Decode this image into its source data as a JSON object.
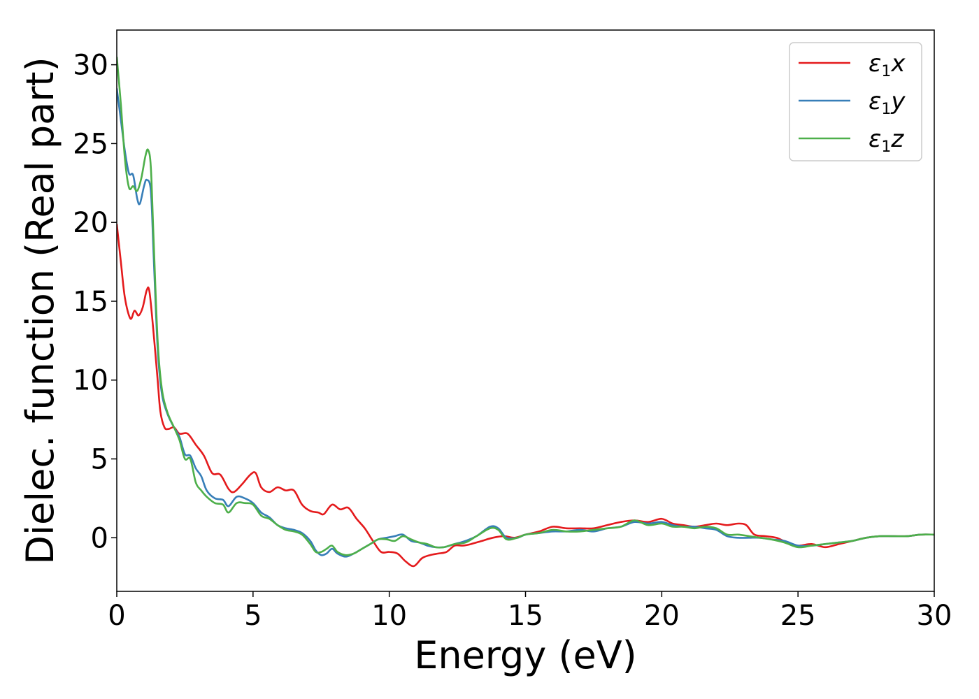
{
  "chart_data": {
    "type": "line",
    "title": "",
    "xlabel": "Energy (eV)",
    "ylabel": "Dielec. function (Real part)",
    "xlim": [
      0,
      30
    ],
    "ylim": [
      -3.4,
      32.2
    ],
    "xticks": [
      0,
      5,
      10,
      15,
      20,
      25,
      30
    ],
    "yticks": [
      0,
      5,
      10,
      15,
      20,
      25,
      30
    ],
    "grid": false,
    "legend_position": "top-right",
    "series": [
      {
        "name": "ε1x",
        "legend": {
          "base": "ε",
          "sub": "1",
          "var": "x"
        },
        "color": "#e41a1c",
        "points": [
          [
            0,
            19.9
          ],
          [
            0.15,
            17.5
          ],
          [
            0.3,
            15.2
          ],
          [
            0.5,
            13.9
          ],
          [
            0.65,
            14.4
          ],
          [
            0.8,
            14.1
          ],
          [
            0.95,
            14.6
          ],
          [
            1.1,
            15.7
          ],
          [
            1.2,
            15.6
          ],
          [
            1.35,
            13.0
          ],
          [
            1.5,
            10.0
          ],
          [
            1.6,
            8.0
          ],
          [
            1.75,
            7.0
          ],
          [
            1.9,
            6.9
          ],
          [
            2.1,
            7.0
          ],
          [
            2.3,
            6.6
          ],
          [
            2.6,
            6.6
          ],
          [
            2.9,
            5.9
          ],
          [
            3.2,
            5.2
          ],
          [
            3.5,
            4.1
          ],
          [
            3.8,
            4.0
          ],
          [
            4.1,
            3.1
          ],
          [
            4.3,
            2.9
          ],
          [
            4.6,
            3.4
          ],
          [
            4.9,
            4.0
          ],
          [
            5.1,
            4.1
          ],
          [
            5.3,
            3.2
          ],
          [
            5.6,
            2.9
          ],
          [
            5.9,
            3.2
          ],
          [
            6.2,
            3.0
          ],
          [
            6.5,
            3.0
          ],
          [
            6.8,
            2.1
          ],
          [
            7.1,
            1.7
          ],
          [
            7.4,
            1.6
          ],
          [
            7.6,
            1.5
          ],
          [
            7.9,
            2.1
          ],
          [
            8.2,
            1.8
          ],
          [
            8.5,
            1.9
          ],
          [
            8.8,
            1.2
          ],
          [
            9.1,
            0.6
          ],
          [
            9.4,
            -0.2
          ],
          [
            9.7,
            -0.9
          ],
          [
            10.0,
            -0.9
          ],
          [
            10.3,
            -1.0
          ],
          [
            10.6,
            -1.5
          ],
          [
            10.9,
            -1.8
          ],
          [
            11.2,
            -1.3
          ],
          [
            11.5,
            -1.1
          ],
          [
            11.8,
            -1.0
          ],
          [
            12.1,
            -0.9
          ],
          [
            12.4,
            -0.5
          ],
          [
            12.7,
            -0.5
          ],
          [
            13.0,
            -0.4
          ],
          [
            13.4,
            -0.2
          ],
          [
            13.8,
            0.0
          ],
          [
            14.2,
            0.1
          ],
          [
            14.6,
            0.0
          ],
          [
            15.0,
            0.2
          ],
          [
            15.5,
            0.4
          ],
          [
            16.0,
            0.7
          ],
          [
            16.5,
            0.6
          ],
          [
            17.0,
            0.6
          ],
          [
            17.5,
            0.6
          ],
          [
            18.0,
            0.8
          ],
          [
            18.5,
            1.0
          ],
          [
            19.0,
            1.1
          ],
          [
            19.5,
            1.0
          ],
          [
            20.0,
            1.2
          ],
          [
            20.4,
            0.9
          ],
          [
            20.8,
            0.8
          ],
          [
            21.2,
            0.7
          ],
          [
            21.6,
            0.8
          ],
          [
            22.0,
            0.9
          ],
          [
            22.4,
            0.8
          ],
          [
            22.8,
            0.9
          ],
          [
            23.1,
            0.8
          ],
          [
            23.4,
            0.2
          ],
          [
            23.8,
            0.1
          ],
          [
            24.2,
            0.0
          ],
          [
            24.6,
            -0.3
          ],
          [
            25.0,
            -0.5
          ],
          [
            25.5,
            -0.4
          ],
          [
            26.0,
            -0.6
          ],
          [
            26.5,
            -0.4
          ],
          [
            27.0,
            -0.2
          ],
          [
            27.5,
            0.0
          ],
          [
            28.0,
            0.1
          ],
          [
            28.5,
            0.1
          ],
          [
            29.0,
            0.1
          ],
          [
            29.5,
            0.2
          ],
          [
            30.0,
            0.2
          ]
        ]
      },
      {
        "name": "ε1y",
        "legend": {
          "base": "ε",
          "sub": "1",
          "var": "y"
        },
        "color": "#377eb8",
        "points": [
          [
            0,
            28.5
          ],
          [
            0.15,
            26.5
          ],
          [
            0.3,
            24.5
          ],
          [
            0.45,
            23.1
          ],
          [
            0.6,
            23.0
          ],
          [
            0.75,
            21.5
          ],
          [
            0.85,
            21.2
          ],
          [
            1.0,
            22.3
          ],
          [
            1.1,
            22.7
          ],
          [
            1.25,
            22.0
          ],
          [
            1.35,
            18.0
          ],
          [
            1.5,
            12.0
          ],
          [
            1.65,
            9.2
          ],
          [
            1.85,
            7.9
          ],
          [
            2.1,
            7.0
          ],
          [
            2.3,
            6.4
          ],
          [
            2.5,
            5.3
          ],
          [
            2.7,
            5.2
          ],
          [
            2.9,
            4.4
          ],
          [
            3.1,
            3.9
          ],
          [
            3.3,
            3.0
          ],
          [
            3.6,
            2.5
          ],
          [
            3.9,
            2.4
          ],
          [
            4.1,
            2.0
          ],
          [
            4.4,
            2.6
          ],
          [
            4.7,
            2.5
          ],
          [
            5.0,
            2.2
          ],
          [
            5.3,
            1.6
          ],
          [
            5.6,
            1.3
          ],
          [
            5.9,
            0.8
          ],
          [
            6.2,
            0.6
          ],
          [
            6.5,
            0.5
          ],
          [
            6.8,
            0.3
          ],
          [
            7.1,
            -0.2
          ],
          [
            7.3,
            -0.8
          ],
          [
            7.5,
            -1.1
          ],
          [
            7.7,
            -1.0
          ],
          [
            7.9,
            -0.7
          ],
          [
            8.1,
            -1.0
          ],
          [
            8.4,
            -1.2
          ],
          [
            8.7,
            -1.0
          ],
          [
            9.0,
            -0.7
          ],
          [
            9.3,
            -0.4
          ],
          [
            9.6,
            -0.1
          ],
          [
            9.9,
            0.0
          ],
          [
            10.2,
            0.1
          ],
          [
            10.5,
            0.2
          ],
          [
            10.8,
            -0.2
          ],
          [
            11.1,
            -0.3
          ],
          [
            11.4,
            -0.5
          ],
          [
            11.7,
            -0.6
          ],
          [
            12.0,
            -0.6
          ],
          [
            12.4,
            -0.4
          ],
          [
            12.8,
            -0.2
          ],
          [
            13.2,
            0.1
          ],
          [
            13.7,
            0.7
          ],
          [
            14.0,
            0.6
          ],
          [
            14.3,
            0.0
          ],
          [
            14.7,
            0.0
          ],
          [
            15.0,
            0.2
          ],
          [
            15.5,
            0.3
          ],
          [
            16.0,
            0.4
          ],
          [
            16.5,
            0.4
          ],
          [
            17.0,
            0.5
          ],
          [
            17.5,
            0.4
          ],
          [
            18.0,
            0.6
          ],
          [
            18.5,
            0.7
          ],
          [
            19.0,
            1.0
          ],
          [
            19.5,
            0.9
          ],
          [
            20.0,
            1.0
          ],
          [
            20.4,
            0.8
          ],
          [
            20.8,
            0.7
          ],
          [
            21.2,
            0.7
          ],
          [
            21.6,
            0.6
          ],
          [
            22.0,
            0.5
          ],
          [
            22.4,
            0.1
          ],
          [
            22.8,
            0.0
          ],
          [
            23.2,
            0.0
          ],
          [
            23.6,
            0.0
          ],
          [
            24.0,
            -0.1
          ],
          [
            24.5,
            -0.2
          ],
          [
            25.0,
            -0.5
          ],
          [
            25.5,
            -0.5
          ],
          [
            26.0,
            -0.4
          ],
          [
            26.5,
            -0.3
          ],
          [
            27.0,
            -0.2
          ],
          [
            27.5,
            0.0
          ],
          [
            28.0,
            0.1
          ],
          [
            28.5,
            0.1
          ],
          [
            29.0,
            0.1
          ],
          [
            29.5,
            0.2
          ],
          [
            30.0,
            0.2
          ]
        ]
      },
      {
        "name": "ε1z",
        "legend": {
          "base": "ε",
          "sub": "1",
          "var": "z"
        },
        "color": "#4daf4a",
        "points": [
          [
            0,
            30.5
          ],
          [
            0.15,
            27.5
          ],
          [
            0.3,
            24.0
          ],
          [
            0.45,
            22.2
          ],
          [
            0.6,
            22.3
          ],
          [
            0.75,
            22.0
          ],
          [
            0.9,
            22.8
          ],
          [
            1.05,
            24.2
          ],
          [
            1.15,
            24.6
          ],
          [
            1.25,
            23.5
          ],
          [
            1.35,
            19.0
          ],
          [
            1.5,
            12.5
          ],
          [
            1.65,
            9.5
          ],
          [
            1.85,
            8.0
          ],
          [
            2.1,
            7.0
          ],
          [
            2.3,
            6.2
          ],
          [
            2.5,
            5.0
          ],
          [
            2.7,
            5.0
          ],
          [
            2.9,
            3.5
          ],
          [
            3.1,
            3.0
          ],
          [
            3.3,
            2.6
          ],
          [
            3.6,
            2.2
          ],
          [
            3.9,
            2.1
          ],
          [
            4.1,
            1.6
          ],
          [
            4.4,
            2.2
          ],
          [
            4.7,
            2.2
          ],
          [
            5.0,
            2.1
          ],
          [
            5.3,
            1.4
          ],
          [
            5.6,
            1.2
          ],
          [
            5.9,
            0.8
          ],
          [
            6.2,
            0.5
          ],
          [
            6.5,
            0.4
          ],
          [
            6.8,
            0.2
          ],
          [
            7.1,
            -0.4
          ],
          [
            7.3,
            -0.9
          ],
          [
            7.5,
            -0.9
          ],
          [
            7.7,
            -0.7
          ],
          [
            7.9,
            -0.5
          ],
          [
            8.1,
            -0.9
          ],
          [
            8.4,
            -1.1
          ],
          [
            8.7,
            -1.0
          ],
          [
            9.0,
            -0.7
          ],
          [
            9.3,
            -0.4
          ],
          [
            9.6,
            -0.1
          ],
          [
            9.9,
            -0.1
          ],
          [
            10.2,
            -0.2
          ],
          [
            10.5,
            0.1
          ],
          [
            10.8,
            -0.1
          ],
          [
            11.1,
            -0.3
          ],
          [
            11.4,
            -0.4
          ],
          [
            11.7,
            -0.6
          ],
          [
            12.0,
            -0.6
          ],
          [
            12.4,
            -0.4
          ],
          [
            12.8,
            -0.3
          ],
          [
            13.2,
            0.1
          ],
          [
            13.7,
            0.6
          ],
          [
            14.0,
            0.5
          ],
          [
            14.3,
            -0.1
          ],
          [
            14.7,
            0.0
          ],
          [
            15.0,
            0.2
          ],
          [
            15.5,
            0.3
          ],
          [
            16.0,
            0.5
          ],
          [
            16.5,
            0.4
          ],
          [
            17.0,
            0.4
          ],
          [
            17.5,
            0.5
          ],
          [
            18.0,
            0.6
          ],
          [
            18.5,
            0.7
          ],
          [
            19.0,
            1.1
          ],
          [
            19.5,
            0.8
          ],
          [
            20.0,
            0.9
          ],
          [
            20.4,
            0.7
          ],
          [
            20.8,
            0.7
          ],
          [
            21.2,
            0.6
          ],
          [
            21.6,
            0.7
          ],
          [
            22.0,
            0.6
          ],
          [
            22.4,
            0.2
          ],
          [
            22.8,
            0.2
          ],
          [
            23.2,
            0.1
          ],
          [
            23.6,
            0.0
          ],
          [
            24.0,
            -0.1
          ],
          [
            24.5,
            -0.3
          ],
          [
            25.0,
            -0.6
          ],
          [
            25.5,
            -0.5
          ],
          [
            26.0,
            -0.4
          ],
          [
            26.5,
            -0.3
          ],
          [
            27.0,
            -0.2
          ],
          [
            27.5,
            0.0
          ],
          [
            28.0,
            0.1
          ],
          [
            28.5,
            0.1
          ],
          [
            29.0,
            0.1
          ],
          [
            29.5,
            0.2
          ],
          [
            30.0,
            0.2
          ]
        ]
      }
    ]
  }
}
